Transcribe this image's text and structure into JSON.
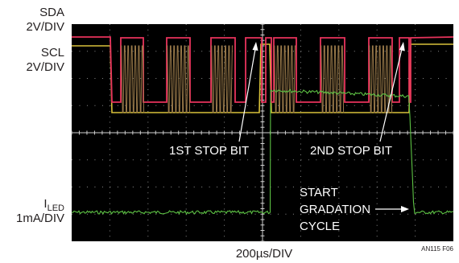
{
  "chart_data": {
    "type": "line",
    "channels": [
      {
        "name_lines": [
          "SDA",
          "2V/DIV"
        ],
        "color": "#e8335c"
      },
      {
        "name_lines": [
          "SCL",
          "2V/DIV"
        ],
        "color": "#d8c13a"
      },
      {
        "name_main": "I",
        "name_sub": "LED",
        "scale": "1mA/DIV",
        "color": "#5dc244"
      }
    ],
    "time_scale": "200µs/DIV",
    "figure_id": "AN115 F06",
    "divisions": {
      "x": 10,
      "y": 8
    },
    "grid": true,
    "annotations": [
      {
        "text_lines": [
          "1ST STOP BIT"
        ]
      },
      {
        "text_lines": [
          "2ND STOP BIT"
        ]
      },
      {
        "text_lines": [
          "START",
          "GRADATION",
          "CYCLE"
        ]
      }
    ],
    "background": "#000000"
  }
}
